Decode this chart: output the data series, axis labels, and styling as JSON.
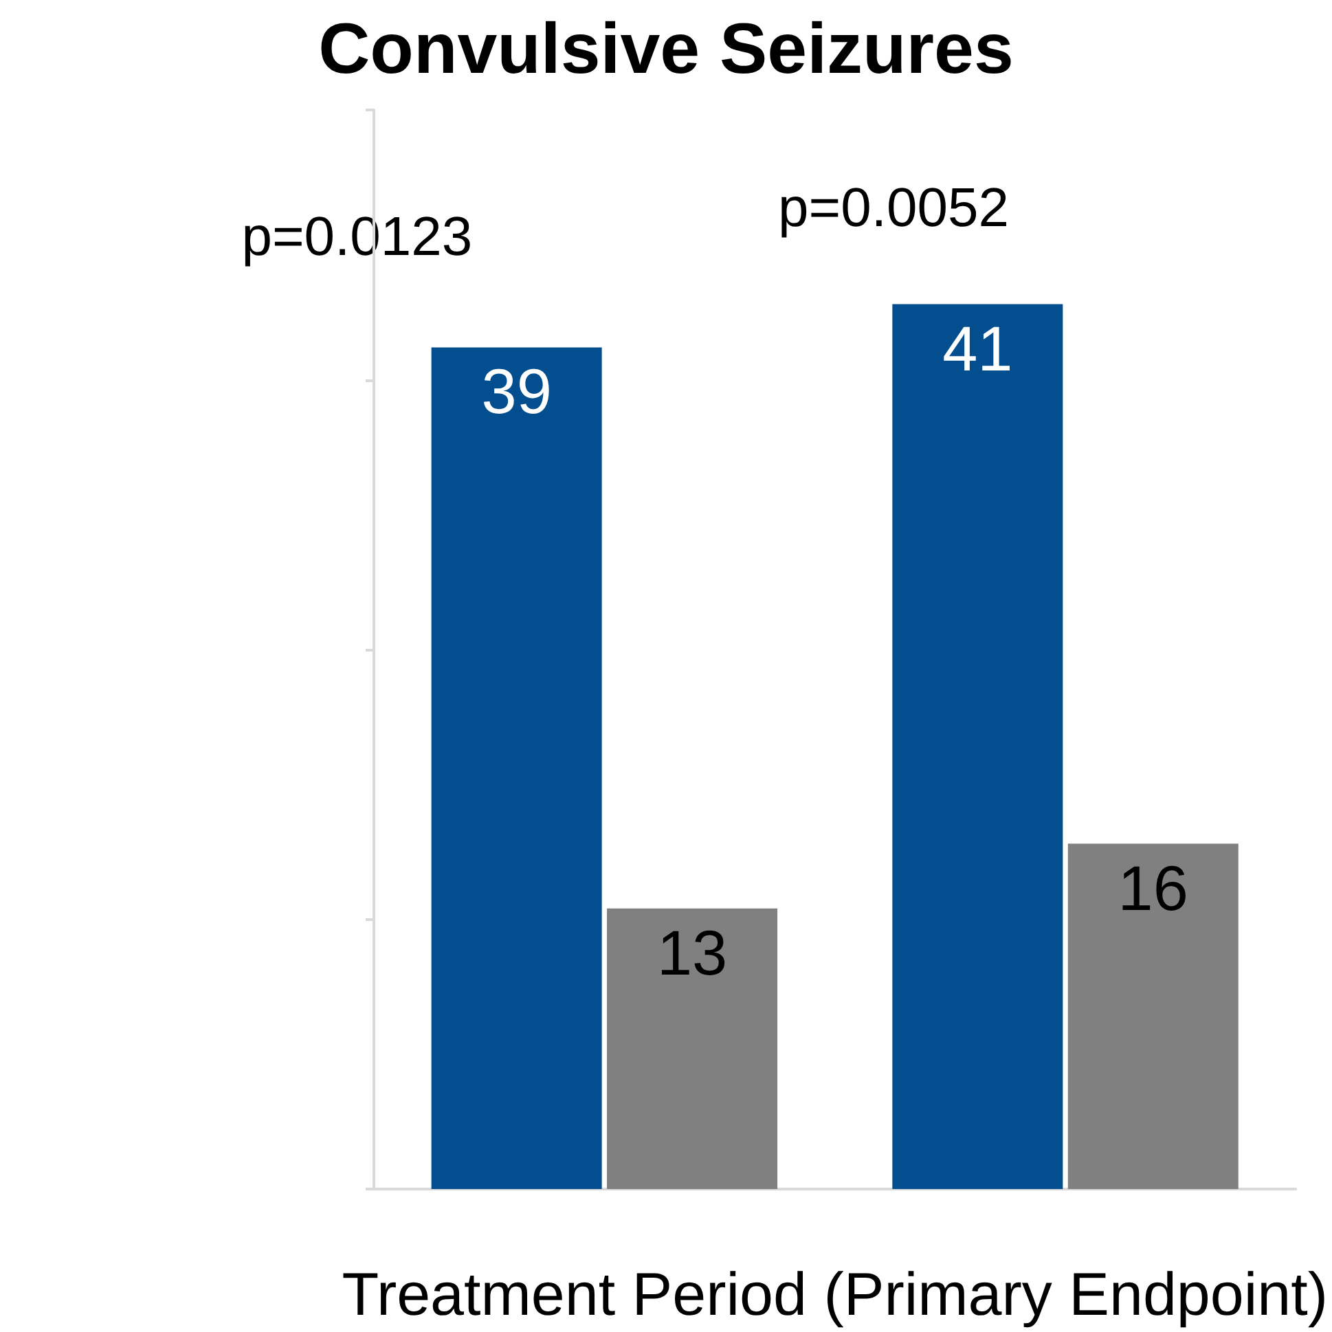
{
  "chart_data": {
    "type": "bar",
    "title": "Convulsive Seizures",
    "xlabel": "Treatment Period (Primary Endpoint)",
    "categories": [
      null,
      null
    ],
    "series": [
      {
        "color": "#034e8e",
        "values": [
          39,
          41
        ]
      },
      {
        "color": "#808080",
        "values": [
          13,
          16
        ]
      }
    ],
    "ylim": [
      0,
      50
    ],
    "yticks": [
      {
        "value": 0,
        "label": null
      },
      {
        "value": 12.5,
        "label": null
      },
      {
        "value": 25,
        "label": null
      },
      {
        "value": 37.5,
        "label": null
      },
      {
        "value": 50,
        "label": null
      }
    ],
    "grid": false,
    "data_labels": true,
    "annotations": [
      "p=0.0123",
      "p=0.0052"
    ]
  }
}
